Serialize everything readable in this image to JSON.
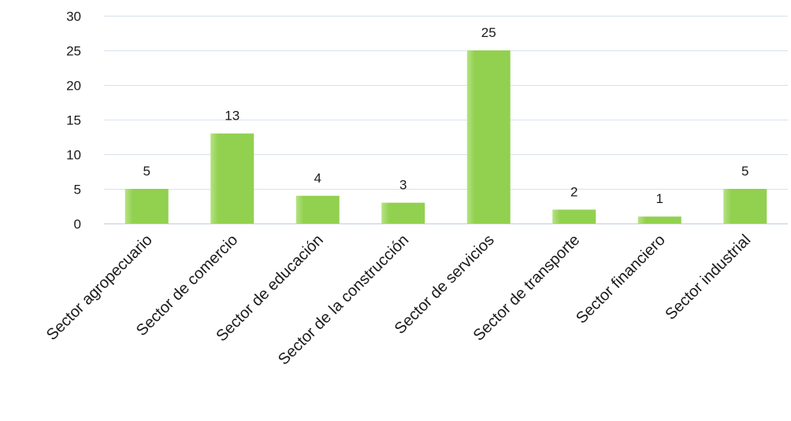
{
  "colors": {
    "bar": "#92d050",
    "bar_highlight": "#b5e283",
    "grid": "#d7e1ee",
    "axis": "#bfcde0",
    "text": "#1a1a1a"
  },
  "chart_data": {
    "type": "bar",
    "categories": [
      "Sector agropecuario",
      "Sector de comercio",
      "Sector de educación",
      "Sector de la construcción",
      "Sector de servicios",
      "Sector de transporte",
      "Sector financiero",
      "Sector industrial"
    ],
    "values": [
      5,
      13,
      4,
      3,
      25,
      2,
      1,
      5
    ],
    "data_labels": [
      "5",
      "13",
      "4",
      "3",
      "25",
      "2",
      "1",
      "5"
    ],
    "y_ticks": [
      0,
      5,
      10,
      15,
      20,
      25,
      30
    ],
    "ylim": [
      0,
      30
    ],
    "grid": true,
    "legend": false
  }
}
